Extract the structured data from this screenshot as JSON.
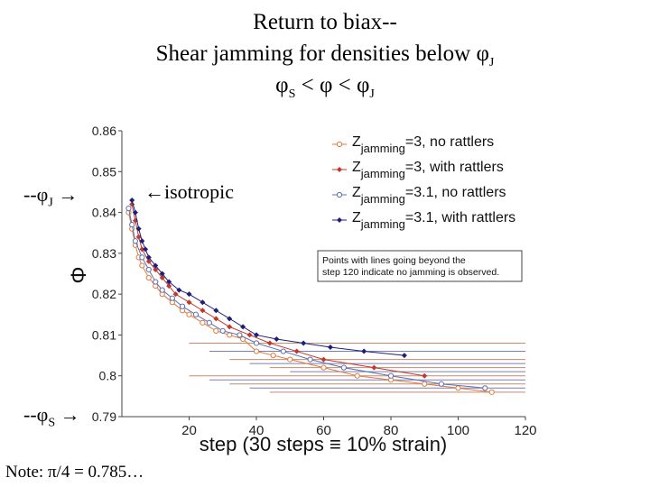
{
  "slide": {
    "title_line1": "Return to biax--",
    "title_line2_prefix": "Shear jamming for densities below φ",
    "title_line2_sub": "J",
    "title_line3_a": "φ",
    "title_line3_a_sub": "S",
    "title_line3_b": " < φ < φ",
    "title_line3_b_sub": "J",
    "label_phiJ_prefix": "--φ",
    "label_phiJ_sub": "J",
    "label_phiS_prefix": "--φ",
    "label_phiS_sub": "S",
    "arrow": "→",
    "isotropic_label": "←isotropic",
    "note": "Note: π/4 = 0.785…"
  },
  "chart_data": {
    "type": "scatter",
    "xlabel": "step (30 steps ≡ 10% strain)",
    "ylabel": "Φ",
    "xlim": [
      0,
      120
    ],
    "ylim": [
      0.79,
      0.86
    ],
    "xticks": [
      "20",
      "40",
      "60",
      "80",
      "100",
      "120"
    ],
    "yticks": [
      "0.79",
      "0.8",
      "0.81",
      "0.82",
      "0.83",
      "0.84",
      "0.85",
      "0.86"
    ],
    "annotation": "Points with lines going beyond the step 120 indicate no jamming is observed.",
    "annotation_lines": [
      "Points with lines going beyond the",
      "step 120 indicate no jamming is observed."
    ],
    "legend_position": "top-right",
    "series": [
      {
        "name_main": "Z",
        "name_sub": "jamming",
        "name_rest": "=3, no rattlers",
        "color": "#e07a3c",
        "marker": "open-circle",
        "points": [
          [
            2,
            0.84
          ],
          [
            3,
            0.836
          ],
          [
            4,
            0.832
          ],
          [
            5,
            0.829
          ],
          [
            6,
            0.827
          ],
          [
            8,
            0.824
          ],
          [
            10,
            0.822
          ],
          [
            12,
            0.82
          ],
          [
            15,
            0.818
          ],
          [
            18,
            0.816
          ],
          [
            20,
            0.815
          ],
          [
            24,
            0.813
          ],
          [
            28,
            0.811
          ],
          [
            32,
            0.81
          ],
          [
            36,
            0.809
          ],
          [
            40,
            0.806
          ],
          [
            45,
            0.805
          ],
          [
            50,
            0.804
          ],
          [
            60,
            0.802
          ],
          [
            70,
            0.8
          ],
          [
            80,
            0.799
          ],
          [
            90,
            0.798
          ],
          [
            100,
            0.797
          ],
          [
            110,
            0.796
          ]
        ]
      },
      {
        "name_main": "Z",
        "name_sub": "jamming",
        "name_rest": "=3, with rattlers",
        "color": "#c0392b",
        "marker": "filled-diamond",
        "points": [
          [
            3,
            0.842
          ],
          [
            4,
            0.838
          ],
          [
            5,
            0.834
          ],
          [
            6,
            0.831
          ],
          [
            8,
            0.828
          ],
          [
            10,
            0.826
          ],
          [
            12,
            0.824
          ],
          [
            14,
            0.822
          ],
          [
            16,
            0.82
          ],
          [
            20,
            0.818
          ],
          [
            24,
            0.816
          ],
          [
            28,
            0.814
          ],
          [
            32,
            0.812
          ],
          [
            38,
            0.81
          ],
          [
            44,
            0.808
          ],
          [
            52,
            0.806
          ],
          [
            60,
            0.804
          ],
          [
            75,
            0.802
          ],
          [
            90,
            0.8
          ]
        ]
      },
      {
        "name_main": "Z",
        "name_sub": "jamming",
        "name_rest": "=3.1, no rattlers",
        "color": "#5b6fb5",
        "marker": "open-circle",
        "points": [
          [
            2,
            0.841
          ],
          [
            3,
            0.837
          ],
          [
            4,
            0.833
          ],
          [
            6,
            0.829
          ],
          [
            8,
            0.826
          ],
          [
            10,
            0.823
          ],
          [
            12,
            0.821
          ],
          [
            15,
            0.819
          ],
          [
            18,
            0.817
          ],
          [
            22,
            0.815
          ],
          [
            26,
            0.813
          ],
          [
            30,
            0.811
          ],
          [
            35,
            0.81
          ],
          [
            40,
            0.808
          ],
          [
            48,
            0.806
          ],
          [
            56,
            0.804
          ],
          [
            66,
            0.802
          ],
          [
            80,
            0.8
          ],
          [
            95,
            0.798
          ],
          [
            108,
            0.797
          ]
        ]
      },
      {
        "name_main": "Z",
        "name_sub": "jamming",
        "name_rest": "=3.1, with rattlers",
        "color": "#1f1f7a",
        "marker": "filled-diamond",
        "points": [
          [
            3,
            0.843
          ],
          [
            4,
            0.84
          ],
          [
            5,
            0.836
          ],
          [
            6,
            0.833
          ],
          [
            7,
            0.831
          ],
          [
            8,
            0.829
          ],
          [
            10,
            0.827
          ],
          [
            12,
            0.825
          ],
          [
            14,
            0.823
          ],
          [
            17,
            0.821
          ],
          [
            20,
            0.82
          ],
          [
            24,
            0.818
          ],
          [
            28,
            0.816
          ],
          [
            32,
            0.814
          ],
          [
            36,
            0.812
          ],
          [
            40,
            0.81
          ],
          [
            46,
            0.809
          ],
          [
            54,
            0.808
          ],
          [
            62,
            0.807
          ],
          [
            72,
            0.806
          ],
          [
            84,
            0.805
          ]
        ]
      }
    ],
    "no_jam_lines_y": [
      0.808,
      0.806,
      0.804,
      0.803,
      0.802,
      0.801,
      0.8,
      0.799,
      0.798,
      0.797,
      0.796
    ]
  }
}
